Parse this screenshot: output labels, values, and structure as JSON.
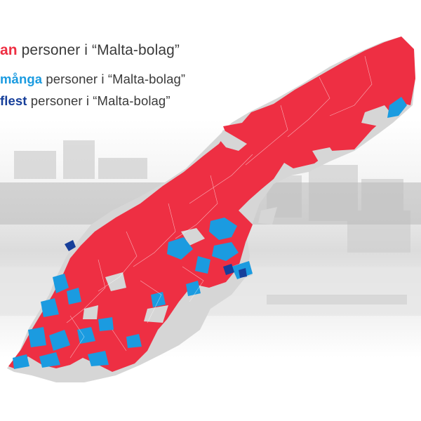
{
  "legend": {
    "items": [
      {
        "keyword": "an",
        "text": " personer i “Malta-bolag”",
        "color": "#ee2f43"
      },
      {
        "keyword": "många",
        "text": " personer i “Malta-bolag”",
        "color": "#1b9be0"
      },
      {
        "keyword": "flest",
        "text": " personer i “Malta-bolag”",
        "color": "#173f9a"
      }
    ]
  },
  "map": {
    "colors": {
      "few": "#ee2f43",
      "many": "#1b9be0",
      "most": "#173f9a",
      "no_data": "#d6d6d6",
      "background_photo": "#ececec"
    }
  }
}
